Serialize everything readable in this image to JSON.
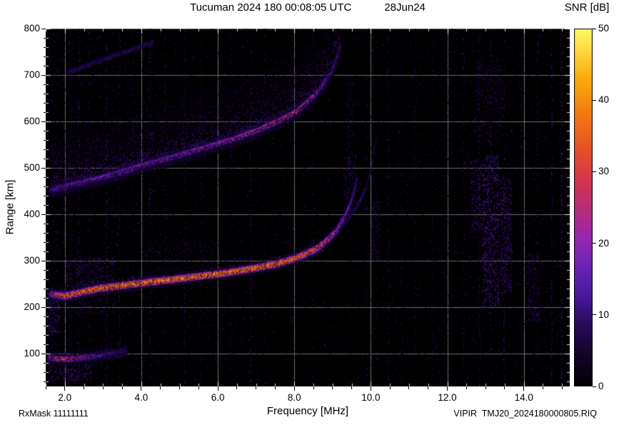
{
  "chart_data": {
    "type": "heatmap",
    "title": "Tucuman 2024 180 00:08:05 UTC",
    "date_label": "28Jun24",
    "xlabel": "Frequency [MHz]",
    "ylabel": "Range [km]",
    "colorbar_label": "SNR [dB]",
    "xlim": [
      1.5,
      15.2
    ],
    "ylim": [
      30,
      800
    ],
    "x_minor_step": 0.5,
    "y_minor_step": 20,
    "grid": true,
    "grid_color": "#6e6e6e",
    "xticks": [
      {
        "v": 2.0,
        "label": "2.0"
      },
      {
        "v": 4.0,
        "label": "4.0"
      },
      {
        "v": 6.0,
        "label": "6.0"
      },
      {
        "v": 8.0,
        "label": "8.0"
      },
      {
        "v": 10.0,
        "label": "10.0"
      },
      {
        "v": 12.0,
        "label": "12.0"
      },
      {
        "v": 14.0,
        "label": "14.0"
      }
    ],
    "yticks": [
      {
        "v": 100,
        "label": "100"
      },
      {
        "v": 200,
        "label": "200"
      },
      {
        "v": 300,
        "label": "300"
      },
      {
        "v": 400,
        "label": "400"
      },
      {
        "v": 500,
        "label": "500"
      },
      {
        "v": 600,
        "label": "600"
      },
      {
        "v": 700,
        "label": "700"
      },
      {
        "v": 800,
        "label": "800"
      }
    ],
    "colorbar": {
      "min": 0,
      "max": 50,
      "ticks": [
        {
          "v": 0,
          "label": "0"
        },
        {
          "v": 10,
          "label": "10"
        },
        {
          "v": 20,
          "label": "20"
        },
        {
          "v": 30,
          "label": "30"
        },
        {
          "v": 40,
          "label": "40"
        },
        {
          "v": 50,
          "label": "50"
        }
      ]
    },
    "colormap_stops": [
      [
        0.0,
        [
          0,
          0,
          0
        ]
      ],
      [
        0.1,
        [
          20,
          5,
          45
        ]
      ],
      [
        0.18,
        [
          45,
          10,
          95
        ]
      ],
      [
        0.26,
        [
          75,
          25,
          160
        ]
      ],
      [
        0.34,
        [
          110,
          35,
          185
        ]
      ],
      [
        0.42,
        [
          150,
          40,
          170
        ]
      ],
      [
        0.5,
        [
          185,
          45,
          120
        ]
      ],
      [
        0.58,
        [
          210,
          55,
          75
        ]
      ],
      [
        0.66,
        [
          228,
          80,
          42
        ]
      ],
      [
        0.76,
        [
          243,
          120,
          18
        ]
      ],
      [
        0.86,
        [
          250,
          170,
          12
        ]
      ],
      [
        1.0,
        [
          255,
          250,
          100
        ]
      ]
    ],
    "noise": {
      "seed": 20241800,
      "base_count": 9000,
      "left_extra": 3200,
      "bright_count": 380,
      "streaks": [
        [
          2.35,
          0.22,
          8
        ],
        [
          2.62,
          0.15,
          7
        ],
        [
          3.08,
          0.25,
          8
        ],
        [
          3.42,
          0.18,
          7
        ],
        [
          3.78,
          0.12,
          7
        ],
        [
          4.22,
          0.25,
          8
        ],
        [
          4.62,
          0.15,
          7
        ],
        [
          5.12,
          0.2,
          8
        ],
        [
          5.55,
          0.12,
          7
        ],
        [
          6.32,
          0.15,
          7
        ],
        [
          6.85,
          0.2,
          8
        ],
        [
          7.22,
          0.12,
          7
        ],
        [
          7.92,
          0.15,
          7
        ],
        [
          8.48,
          0.12,
          7
        ],
        [
          9.86,
          0.12,
          7
        ],
        [
          10.15,
          0.1,
          7
        ],
        [
          10.45,
          0.18,
          8
        ],
        [
          10.8,
          0.1,
          7
        ],
        [
          11.15,
          0.15,
          7
        ],
        [
          11.6,
          0.12,
          7
        ],
        [
          12.0,
          0.15,
          8
        ],
        [
          12.42,
          0.2,
          8
        ],
        [
          12.82,
          0.22,
          8
        ],
        [
          13.12,
          0.22,
          9
        ],
        [
          13.48,
          0.18,
          8
        ],
        [
          13.92,
          0.15,
          8
        ],
        [
          14.35,
          0.2,
          8
        ],
        [
          14.72,
          0.25,
          9
        ],
        [
          14.98,
          0.3,
          9
        ]
      ],
      "patches": [
        [
          12.9,
          13.35,
          200,
          530,
          800,
          6,
          15
        ],
        [
          13.38,
          13.68,
          230,
          480,
          450,
          6,
          13
        ],
        [
          12.6,
          12.88,
          360,
          520,
          220,
          6,
          12
        ],
        [
          14.05,
          14.45,
          170,
          320,
          220,
          5,
          11
        ],
        [
          12.7,
          13.45,
          555,
          735,
          320,
          5,
          10
        ],
        [
          9.3,
          9.6,
          420,
          530,
          140,
          6,
          11
        ],
        [
          9.35,
          9.55,
          530,
          700,
          100,
          5,
          9
        ],
        [
          10.0,
          10.25,
          300,
          430,
          120,
          5,
          10
        ],
        [
          1.52,
          1.85,
          140,
          235,
          200,
          6,
          13
        ],
        [
          1.52,
          2.7,
          42,
          80,
          260,
          6,
          12
        ],
        [
          2.0,
          3.3,
          248,
          308,
          320,
          6,
          12
        ],
        [
          1.9,
          3.1,
          180,
          248,
          150,
          5,
          10
        ],
        [
          4.0,
          6.2,
          300,
          342,
          140,
          4,
          9
        ],
        [
          10.3,
          15.1,
          60,
          780,
          1100,
          3,
          8
        ]
      ]
    },
    "traces": [
      {
        "name": "second-hop-F-echo",
        "core": 3,
        "jitter": 3,
        "halo": 16,
        "halo_snr": 10,
        "spread_above": 125,
        "spread_below": 20,
        "spread_density": 4,
        "spread_snr": 13,
        "dash": 0,
        "points": [
          [
            1.6,
            452,
            14
          ],
          [
            2.0,
            461,
            20
          ],
          [
            2.5,
            471,
            21
          ],
          [
            3.0,
            481,
            22
          ],
          [
            3.5,
            493,
            22
          ],
          [
            4.0,
            506,
            23
          ],
          [
            4.5,
            517,
            23
          ],
          [
            5.0,
            529,
            24
          ],
          [
            5.5,
            541,
            25
          ],
          [
            6.0,
            553,
            26
          ],
          [
            6.5,
            566,
            28
          ],
          [
            7.0,
            581,
            30
          ],
          [
            7.5,
            599,
            32
          ],
          [
            8.0,
            620,
            34
          ],
          [
            8.3,
            640,
            32
          ],
          [
            8.6,
            664,
            27
          ],
          [
            8.8,
            687,
            23
          ],
          [
            9.0,
            713,
            18
          ],
          [
            9.1,
            737,
            14
          ],
          [
            9.2,
            764,
            10
          ]
        ]
      },
      {
        "name": "multi-hop-diagonal-echo",
        "core": 1,
        "jitter": 4,
        "halo": 6,
        "halo_snr": 8,
        "dash": 0.35,
        "points": [
          [
            2.05,
            706,
            10
          ],
          [
            2.6,
            722,
            11
          ],
          [
            3.2,
            740,
            11
          ],
          [
            3.8,
            757,
            11
          ],
          [
            4.3,
            772,
            10
          ]
        ]
      },
      {
        "name": "x-mode-branch",
        "core": 1,
        "jitter": 3,
        "halo": 5,
        "halo_snr": 9,
        "dash": 0.45,
        "points": [
          [
            8.1,
            313,
            11
          ],
          [
            8.6,
            331,
            12
          ],
          [
            9.0,
            356,
            13
          ],
          [
            9.35,
            386,
            13
          ],
          [
            9.65,
            421,
            13
          ],
          [
            9.85,
            456,
            12
          ],
          [
            10.0,
            496,
            12
          ],
          [
            10.08,
            540,
            11
          ],
          [
            10.13,
            566,
            9
          ]
        ]
      },
      {
        "name": "F-region-main-echo",
        "core": 4,
        "jitter": 2.5,
        "halo": 14,
        "halo_snr": 11,
        "spread_above": 28,
        "spread_below": 14,
        "spread_density": 1,
        "spread_snr": 10,
        "dash": 0,
        "points": [
          [
            1.6,
            230,
            22
          ],
          [
            1.8,
            227,
            32
          ],
          [
            2.0,
            226,
            38
          ],
          [
            2.3,
            231,
            40
          ],
          [
            2.6,
            237,
            41
          ],
          [
            3.0,
            243,
            42
          ],
          [
            3.5,
            248,
            42
          ],
          [
            4.0,
            253,
            43
          ],
          [
            4.5,
            258,
            42
          ],
          [
            5.0,
            263,
            42
          ],
          [
            5.5,
            268,
            43
          ],
          [
            6.0,
            273,
            43
          ],
          [
            6.5,
            279,
            42
          ],
          [
            7.0,
            286,
            42
          ],
          [
            7.5,
            294,
            41
          ],
          [
            8.0,
            306,
            40
          ],
          [
            8.3,
            316,
            38
          ],
          [
            8.6,
            329,
            35
          ],
          [
            8.9,
            349,
            30
          ],
          [
            9.1,
            367,
            26
          ],
          [
            9.3,
            394,
            21
          ],
          [
            9.45,
            422,
            17
          ],
          [
            9.55,
            450,
            13
          ],
          [
            9.63,
            478,
            10
          ]
        ]
      },
      {
        "name": "E-region-echo",
        "core": 3,
        "jitter": 2,
        "halo": 10,
        "halo_snr": 10,
        "spread_above": 22,
        "spread_below": 18,
        "spread_density": 2,
        "spread_snr": 10,
        "dash": 0,
        "points": [
          [
            1.55,
            93,
            26
          ],
          [
            1.8,
            90,
            35
          ],
          [
            2.1,
            90,
            33
          ],
          [
            2.4,
            92,
            27
          ],
          [
            2.7,
            95,
            20
          ],
          [
            3.0,
            99,
            15
          ],
          [
            3.3,
            103,
            11
          ],
          [
            3.6,
            107,
            8
          ]
        ]
      }
    ]
  },
  "footer": {
    "rxmask": "RxMask 11111111",
    "file": "VIPIR  TMJ20_2024180000805.RIQ"
  }
}
